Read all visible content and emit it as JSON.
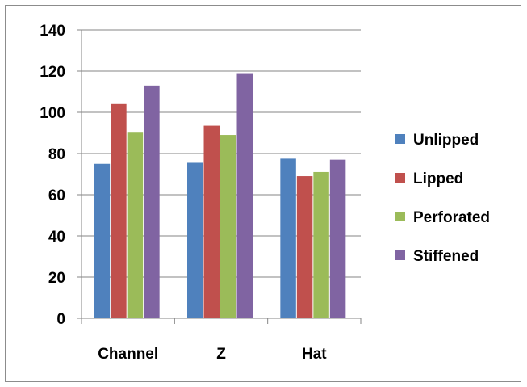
{
  "chart_data": {
    "type": "bar",
    "categories": [
      "Channel",
      "Z",
      "Hat"
    ],
    "series": [
      {
        "name": "Unlipped",
        "values": [
          75,
          75.5,
          77.5
        ],
        "color": "#4F81BD"
      },
      {
        "name": "Lipped",
        "values": [
          104,
          93.5,
          69
        ],
        "color": "#C0504D"
      },
      {
        "name": "Perforated",
        "values": [
          90.5,
          89,
          71
        ],
        "color": "#9BBB59"
      },
      {
        "name": "Stiffened",
        "values": [
          113,
          119,
          77
        ],
        "color": "#8064A2"
      }
    ],
    "yticks": [
      "0",
      "20",
      "40",
      "60",
      "80",
      "100",
      "120",
      "140"
    ],
    "ylim": [
      0,
      140
    ],
    "grid": true,
    "legend_position": "right"
  }
}
